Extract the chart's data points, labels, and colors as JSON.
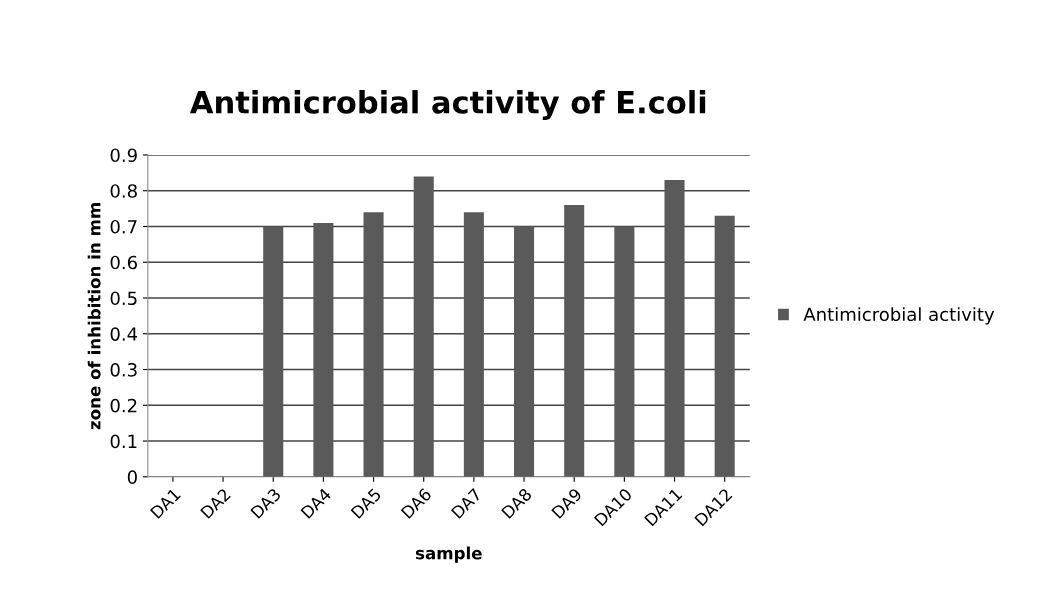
{
  "chart_data": {
    "type": "bar",
    "title": "Antimicrobial activity of E.coli",
    "xlabel": "sample",
    "ylabel": "zone of inhibition in mm",
    "categories": [
      "DA1",
      "DA2",
      "DA3",
      "DA4",
      "DA5",
      "DA6",
      "DA7",
      "DA8",
      "DA9",
      "DA10",
      "DA11",
      "DA12"
    ],
    "series": [
      {
        "name": "Antimicrobial activity",
        "color": "#5a5a5a",
        "values": [
          0,
          0,
          0.7,
          0.71,
          0.74,
          0.84,
          0.74,
          0.7,
          0.76,
          0.7,
          0.83,
          0.73
        ]
      }
    ],
    "ylim": [
      0,
      0.9
    ],
    "yticks": [
      0,
      0.1,
      0.2,
      0.3,
      0.4,
      0.5,
      0.6,
      0.7,
      0.8,
      0.9
    ],
    "grid": "y",
    "legend": "right"
  }
}
